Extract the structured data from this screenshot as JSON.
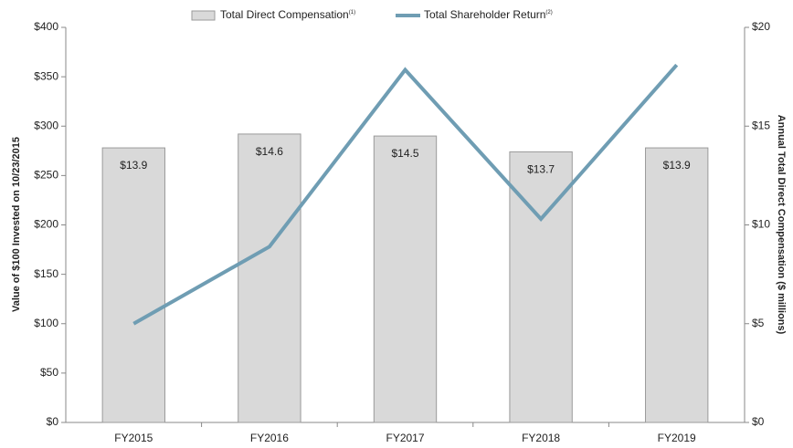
{
  "chart_data": {
    "type": "combo",
    "categories": [
      "FY2015",
      "FY2016",
      "FY2017",
      "FY2018",
      "FY2019"
    ],
    "series": [
      {
        "name": "Total Direct Compensation",
        "note": "(1)",
        "type": "bar",
        "axis": "y2",
        "color": "#d9d9d9",
        "values": [
          13.9,
          14.6,
          14.5,
          13.7,
          13.9
        ],
        "value_labels": [
          "$13.9",
          "$14.6",
          "$14.5",
          "$13.7",
          "$13.9"
        ]
      },
      {
        "name": "Total Shareholder Return",
        "note": "(2)",
        "type": "line",
        "color": "#6f9db3",
        "values": [
          100,
          178,
          357,
          206,
          362
        ]
      }
    ],
    "ylabel": "Value of $100 Invested on 10/23/2015",
    "y2label": "Annual Total Direct Compensation ($ millions)",
    "ylim": [
      0,
      400
    ],
    "yticks": [
      {
        "value": 0,
        "label": "$0"
      },
      {
        "value": 50,
        "label": "$50"
      },
      {
        "value": 100,
        "label": "$100"
      },
      {
        "value": 150,
        "label": "$150"
      },
      {
        "value": 200,
        "label": "$200"
      },
      {
        "value": 250,
        "label": "$250"
      },
      {
        "value": 300,
        "label": "$300"
      },
      {
        "value": 350,
        "label": "$350"
      },
      {
        "value": 400,
        "label": "$400"
      }
    ],
    "y2lim": [
      0,
      20
    ],
    "y2ticks": [
      {
        "value": 0,
        "label": "$0"
      },
      {
        "value": 5,
        "label": "$5"
      },
      {
        "value": 10,
        "label": "$10"
      },
      {
        "value": 15,
        "label": "$15"
      },
      {
        "value": 20,
        "label": "$20"
      }
    ],
    "grid": false
  }
}
